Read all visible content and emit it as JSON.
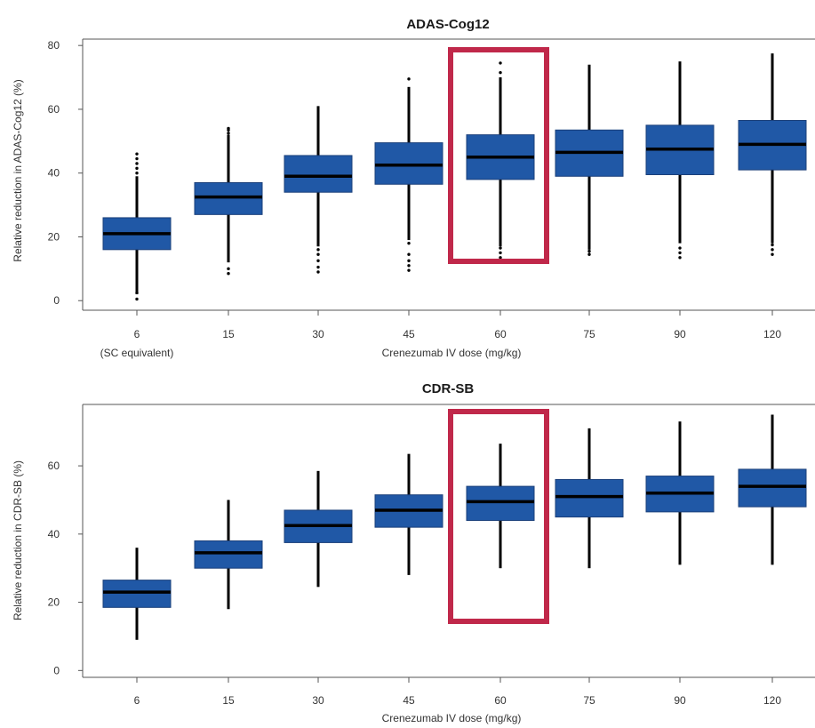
{
  "colors": {
    "box_fill": "#2058a6",
    "box_stroke": "#1a3f7a",
    "median": "#000000",
    "whisker": "#000000",
    "outlier": "#000000",
    "highlight": "#c0284a",
    "frame": "#555555"
  },
  "chart_data": [
    {
      "type": "box",
      "title": "ADAS-Cog12",
      "xlabel": "Crenezumab IV dose (mg/kg)",
      "ylabel": "Relative reduction in ADAS-Cog12 (%)",
      "ylim": [
        -3,
        82
      ],
      "yticks": [
        0,
        20,
        40,
        60,
        80
      ],
      "categories": [
        "6",
        "15",
        "30",
        "45",
        "60",
        "75",
        "90",
        "120"
      ],
      "category_sublabels": [
        "(SC equivalent)",
        "",
        "",
        "",
        "",
        "",
        "",
        ""
      ],
      "highlight_category": "60",
      "boxes": [
        {
          "whislo": 2,
          "q1": 16,
          "med": 21,
          "q3": 26,
          "whishi": 39,
          "outliers": [
            0.5,
            2.5,
            40,
            41.5,
            43,
            44.5,
            46
          ]
        },
        {
          "whislo": 12,
          "q1": 27,
          "med": 32.5,
          "q3": 37,
          "whishi": 52,
          "outliers": [
            8.5,
            10,
            52.5,
            53.5,
            54
          ]
        },
        {
          "whislo": 17,
          "q1": 34,
          "med": 39,
          "q3": 45.5,
          "whishi": 61,
          "outliers": [
            9,
            10.5,
            12.5,
            14.5,
            16
          ]
        },
        {
          "whislo": 19,
          "q1": 36.5,
          "med": 42.5,
          "q3": 49.5,
          "whishi": 67,
          "outliers": [
            9.5,
            11,
            12.5,
            14.5,
            18,
            69.5
          ]
        },
        {
          "whislo": 17,
          "q1": 38,
          "med": 45,
          "q3": 52,
          "whishi": 70,
          "outliers": [
            13.5,
            15,
            16.5,
            71.5,
            74.5
          ]
        },
        {
          "whislo": 16,
          "q1": 39,
          "med": 46.5,
          "q3": 53.5,
          "whishi": 74,
          "outliers": [
            14.5,
            15.5
          ]
        },
        {
          "whislo": 18,
          "q1": 39.5,
          "med": 47.5,
          "q3": 55,
          "whishi": 75,
          "outliers": [
            13.5,
            15,
            16.5
          ]
        },
        {
          "whislo": 18,
          "q1": 41,
          "med": 49,
          "q3": 56.5,
          "whishi": 77.5,
          "outliers": [
            14.5,
            16,
            17.5
          ]
        }
      ]
    },
    {
      "type": "box",
      "title": "CDR-SB",
      "xlabel": "Crenezumab IV dose (mg/kg)",
      "ylabel": "Relative reduction in CDR-SB (%)",
      "ylim": [
        -2,
        78
      ],
      "yticks": [
        0,
        20,
        40,
        60
      ],
      "categories": [
        "6",
        "15",
        "30",
        "45",
        "60",
        "75",
        "90",
        "120"
      ],
      "category_sublabels": [
        "",
        "",
        "",
        "",
        "",
        "",
        "",
        ""
      ],
      "highlight_category": "60",
      "boxes": [
        {
          "whislo": 9,
          "q1": 18.5,
          "med": 23,
          "q3": 26.5,
          "whishi": 36,
          "outliers": []
        },
        {
          "whislo": 18,
          "q1": 30,
          "med": 34.5,
          "q3": 38,
          "whishi": 50,
          "outliers": []
        },
        {
          "whislo": 24.5,
          "q1": 37.5,
          "med": 42.5,
          "q3": 47,
          "whishi": 58.5,
          "outliers": []
        },
        {
          "whislo": 28,
          "q1": 42,
          "med": 47,
          "q3": 51.5,
          "whishi": 63.5,
          "outliers": []
        },
        {
          "whislo": 30,
          "q1": 44,
          "med": 49.5,
          "q3": 54,
          "whishi": 66.5,
          "outliers": []
        },
        {
          "whislo": 30,
          "q1": 45,
          "med": 51,
          "q3": 56,
          "whishi": 71,
          "outliers": []
        },
        {
          "whislo": 31,
          "q1": 46.5,
          "med": 52,
          "q3": 57,
          "whishi": 73,
          "outliers": []
        },
        {
          "whislo": 31,
          "q1": 48,
          "med": 54,
          "q3": 59,
          "whishi": 75,
          "outliers": []
        }
      ]
    }
  ]
}
